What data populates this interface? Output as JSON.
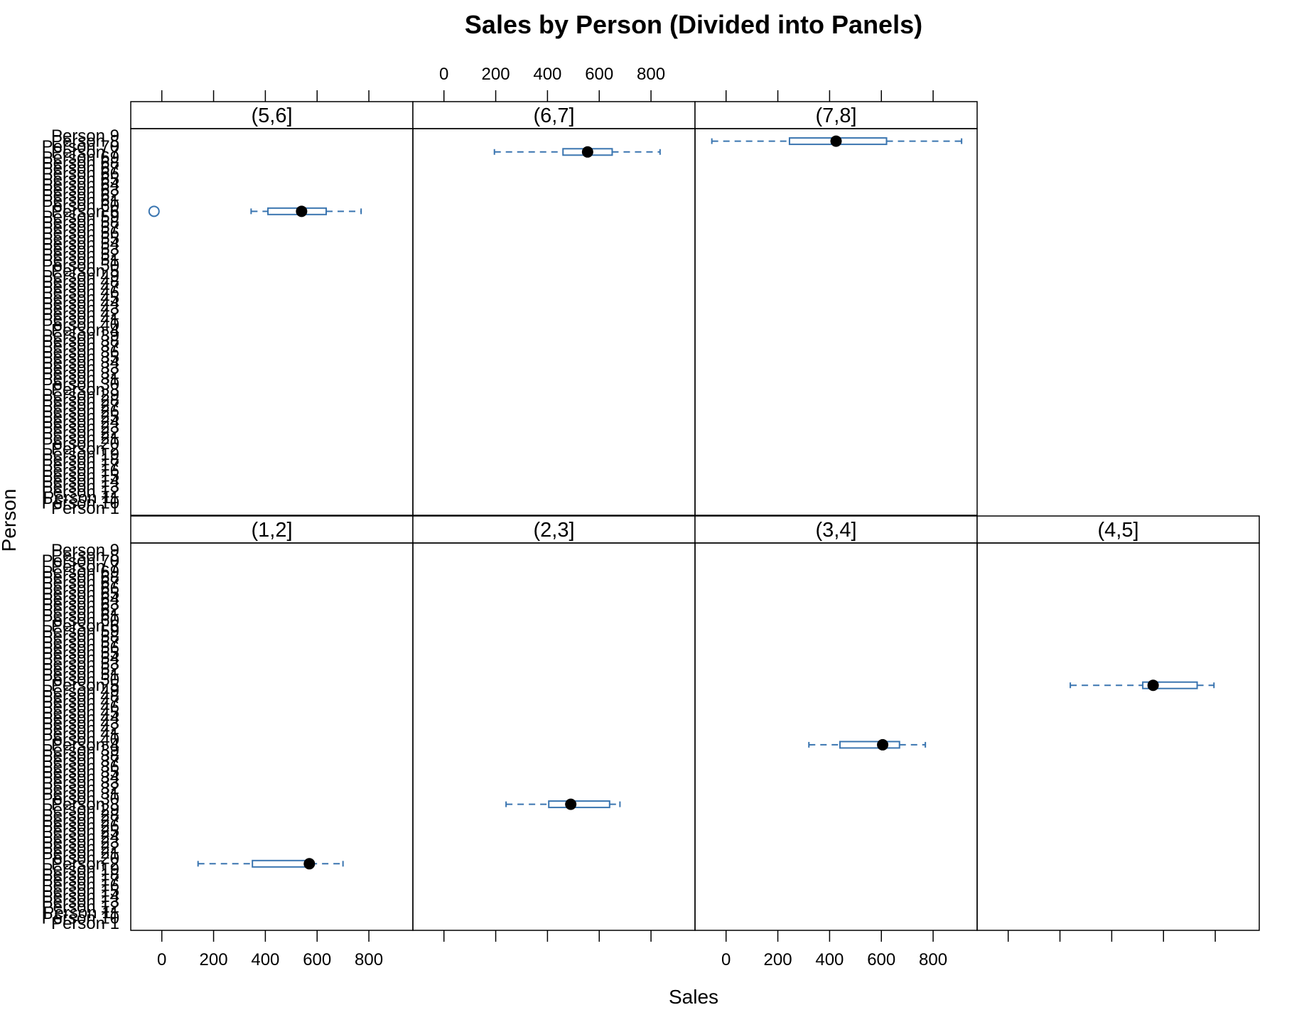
{
  "chart_data": {
    "type": "box",
    "title": "Sales by Person (Divided into Panels)",
    "xlabel": "Sales",
    "ylabel": "Person",
    "xlim": [
      -120,
      970
    ],
    "x_ticks": [
      0,
      200,
      400,
      600,
      800
    ],
    "y_categories": [
      "Person 1",
      "Person 10",
      "Person 11",
      "Person 12",
      "Person 13",
      "Person 14",
      "Person 15",
      "Person 16",
      "Person 17",
      "Person 18",
      "Person 19",
      "Person 2",
      "Person 20",
      "Person 21",
      "Person 22",
      "Person 23",
      "Person 24",
      "Person 25",
      "Person 26",
      "Person 27",
      "Person 28",
      "Person 29",
      "Person 3",
      "Person 30",
      "Person 31",
      "Person 32",
      "Person 33",
      "Person 34",
      "Person 35",
      "Person 36",
      "Person 37",
      "Person 38",
      "Person 39",
      "Person 4",
      "Person 40",
      "Person 41",
      "Person 42",
      "Person 43",
      "Person 44",
      "Person 45",
      "Person 46",
      "Person 47",
      "Person 48",
      "Person 49",
      "Person 5",
      "Person 50",
      "Person 51",
      "Person 52",
      "Person 53",
      "Person 54",
      "Person 55",
      "Person 56",
      "Person 57",
      "Person 58",
      "Person 59",
      "Person 6",
      "Person 60",
      "Person 61",
      "Person 62",
      "Person 63",
      "Person 64",
      "Person 65",
      "Person 66",
      "Person 67",
      "Person 68",
      "Person 69",
      "Person 7",
      "Person 70",
      "Person 8",
      "Person 9"
    ],
    "colors": {
      "box": "#3A75B0",
      "median": "#000000",
      "frame": "#000000"
    },
    "panels": [
      {
        "label": "(1,2]",
        "row": 1,
        "col": 0,
        "boxes": [
          {
            "category": "Person 2",
            "whisker_low": 140,
            "q1": 350,
            "median": 570,
            "q3": 575,
            "whisker_high": 700,
            "outliers": []
          }
        ]
      },
      {
        "label": "(2,3]",
        "row": 1,
        "col": 1,
        "boxes": [
          {
            "category": "Person 3",
            "whisker_low": 240,
            "q1": 405,
            "median": 490,
            "q3": 640,
            "whisker_high": 680,
            "outliers": []
          }
        ]
      },
      {
        "label": "(3,4]",
        "row": 1,
        "col": 2,
        "boxes": [
          {
            "category": "Person 4",
            "whisker_low": 320,
            "q1": 440,
            "median": 605,
            "q3": 670,
            "whisker_high": 770,
            "outliers": []
          }
        ]
      },
      {
        "label": "(4,5]",
        "row": 1,
        "col": 3,
        "boxes": [
          {
            "category": "Person 5",
            "whisker_low": 240,
            "q1": 520,
            "median": 560,
            "q3": 730,
            "whisker_high": 795,
            "outliers": []
          }
        ]
      },
      {
        "label": "(5,6]",
        "row": 0,
        "col": 0,
        "boxes": [
          {
            "category": "Person 6",
            "whisker_low": 345,
            "q1": 410,
            "median": 540,
            "q3": 635,
            "whisker_high": 770,
            "outliers": [
              -30
            ]
          }
        ]
      },
      {
        "label": "(6,7]",
        "row": 0,
        "col": 1,
        "boxes": [
          {
            "category": "Person 7",
            "whisker_low": 195,
            "q1": 460,
            "median": 555,
            "q3": 650,
            "whisker_high": 835,
            "outliers": []
          }
        ]
      },
      {
        "label": "(7,8]",
        "row": 0,
        "col": 2,
        "boxes": [
          {
            "category": "Person 8",
            "whisker_low": -55,
            "q1": 245,
            "median": 425,
            "q3": 620,
            "whisker_high": 910,
            "outliers": []
          }
        ]
      }
    ]
  }
}
